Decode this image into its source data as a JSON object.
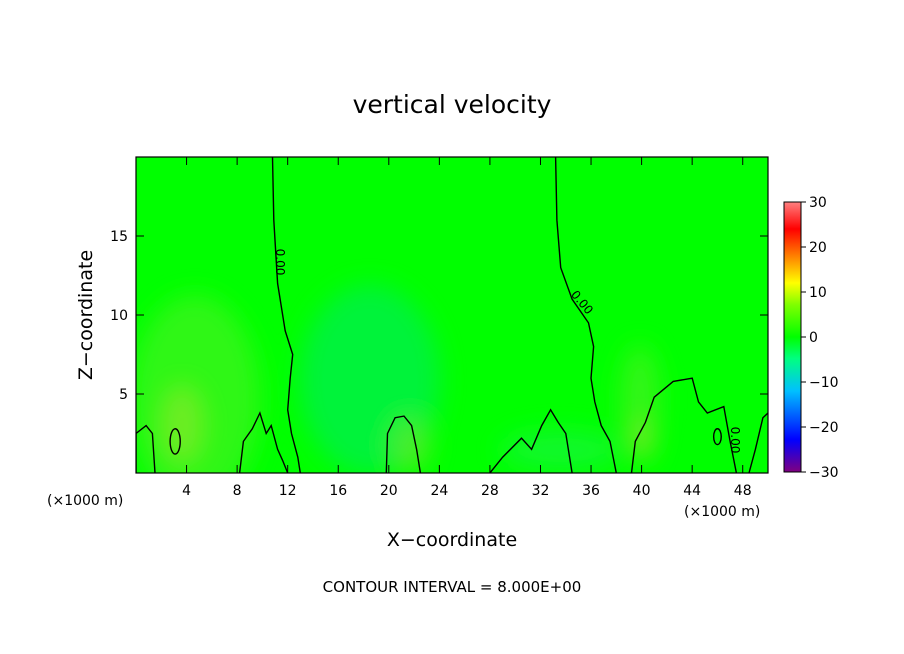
{
  "chart_data": {
    "type": "heatmap",
    "title": "vertical velocity",
    "xlabel": "X−coordinate",
    "ylabel": "Z−coordinate",
    "x_unit": "(×1000 m)",
    "xlim": [
      0,
      50
    ],
    "ylim": [
      0,
      20
    ],
    "x_ticks": [
      4,
      8,
      12,
      16,
      20,
      24,
      28,
      32,
      36,
      40,
      44,
      48
    ],
    "y_ticks": [
      5,
      10,
      15
    ],
    "colorbar": {
      "range": [
        -30,
        30
      ],
      "ticks": [
        30,
        20,
        10,
        0,
        -10,
        -20,
        -30
      ],
      "labels": [
        "30",
        "20",
        "10",
        "0",
        "−10",
        "−20",
        "−30"
      ],
      "colors": [
        "#800080",
        "#0000ff",
        "#00c0ff",
        "#00ff80",
        "#00ff00",
        "#80ff00",
        "#ffff00",
        "#ff8000",
        "#ff0000",
        "#ff8080"
      ]
    },
    "background_color": "#00ff00",
    "contour_label": "0.00",
    "contour_interval_text": "CONTOUR INTERVAL = 8.000E+00",
    "contours": [
      {
        "name": "zero-contour-left",
        "points": [
          [
            10.8,
            20
          ],
          [
            10.9,
            16
          ],
          [
            11.2,
            12
          ],
          [
            11.8,
            9
          ],
          [
            12.4,
            7.5
          ],
          [
            12.2,
            6
          ],
          [
            12.0,
            4
          ],
          [
            12.3,
            2.5
          ],
          [
            12.8,
            1
          ],
          [
            13,
            0
          ]
        ]
      },
      {
        "name": "zero-contour-right",
        "points": [
          [
            33.2,
            20
          ],
          [
            33.3,
            16
          ],
          [
            33.6,
            13
          ],
          [
            34.5,
            11
          ],
          [
            35.8,
            9.5
          ],
          [
            36.2,
            8
          ],
          [
            36.0,
            6
          ],
          [
            36.3,
            4.5
          ],
          [
            36.8,
            3
          ],
          [
            37.5,
            2
          ],
          [
            38,
            0
          ]
        ]
      },
      {
        "name": "low-contour-1",
        "points": [
          [
            0,
            0
          ],
          [
            0,
            2.5
          ],
          [
            0.8,
            3
          ],
          [
            1.3,
            2.5
          ],
          [
            1.5,
            0
          ]
        ]
      },
      {
        "name": "low-contour-2",
        "points": [
          [
            8.2,
            0
          ],
          [
            8.5,
            2
          ],
          [
            9.2,
            2.8
          ],
          [
            9.8,
            3.8
          ],
          [
            10.3,
            2.5
          ],
          [
            10.7,
            3
          ],
          [
            11.2,
            1.5
          ],
          [
            11.6,
            0.8
          ],
          [
            12,
            0
          ]
        ]
      },
      {
        "name": "low-contour-3",
        "points": [
          [
            19.8,
            0
          ],
          [
            19.9,
            2.5
          ],
          [
            20.5,
            3.5
          ],
          [
            21.2,
            3.6
          ],
          [
            21.8,
            3
          ],
          [
            22.2,
            1.5
          ],
          [
            22.5,
            0
          ]
        ]
      },
      {
        "name": "low-contour-4",
        "points": [
          [
            28.0,
            0
          ],
          [
            29,
            1
          ],
          [
            30.5,
            2.2
          ],
          [
            31.3,
            1.5
          ],
          [
            32.1,
            3
          ],
          [
            32.8,
            4
          ],
          [
            33.4,
            3.2
          ],
          [
            34.0,
            2.5
          ],
          [
            34.5,
            0
          ]
        ]
      },
      {
        "name": "low-contour-5",
        "points": [
          [
            39.2,
            0
          ],
          [
            39.5,
            2
          ],
          [
            40.3,
            3.2
          ],
          [
            41.0,
            4.8
          ],
          [
            42.5,
            5.8
          ],
          [
            44.0,
            6.0
          ],
          [
            44.5,
            4.5
          ],
          [
            45.2,
            3.8
          ],
          [
            46.5,
            4.2
          ],
          [
            47.0,
            2
          ],
          [
            47.5,
            0
          ]
        ]
      },
      {
        "name": "low-contour-6",
        "points": [
          [
            48.5,
            0
          ],
          [
            49,
            1.5
          ],
          [
            49.6,
            3.5
          ],
          [
            50,
            3.8
          ]
        ]
      }
    ],
    "closed_contours": [
      {
        "name": "small-loop-1",
        "cx": 3.1,
        "cy": 2.0,
        "rx": 0.4,
        "ry": 0.8
      },
      {
        "name": "small-loop-2",
        "cx": 46.0,
        "cy": 2.3,
        "rx": 0.3,
        "ry": 0.5
      }
    ]
  }
}
